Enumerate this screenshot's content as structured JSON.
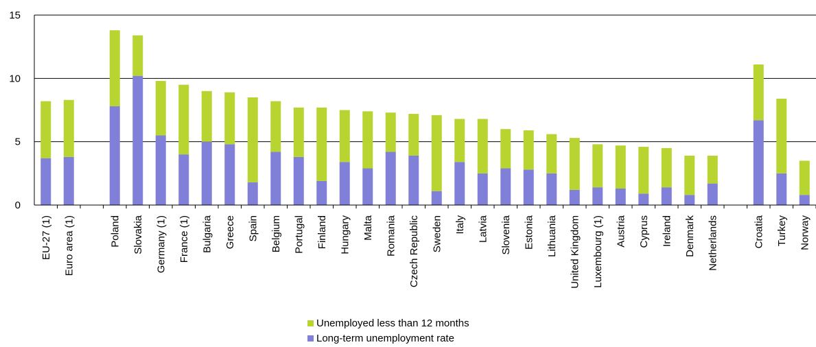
{
  "chart_data": {
    "type": "bar",
    "stacked": true,
    "categories": [
      "EU-27 (1)",
      "Euro area (1)",
      "",
      "Poland",
      "Slovakia",
      "Germany (1)",
      "France (1)",
      "Bulgaria",
      "Greece",
      "Spain",
      "Belgium",
      "Portugal",
      "Finland",
      "Hungary",
      "Malta",
      "Romania",
      "Czech Republic",
      "Sweden",
      "Italy",
      "Latvia",
      "Slovenia",
      "Estonia",
      "Lithuania",
      "United Kingdom",
      "Luxembourg (1)",
      "Austria",
      "Cyprus",
      "Ireland",
      "Denmark",
      "Netherlands",
      "",
      "Croatia",
      "Turkey",
      "Norway"
    ],
    "series": [
      {
        "name": "Long-term unemployment rate",
        "color": "#8080d8",
        "values": [
          3.7,
          3.8,
          null,
          7.8,
          10.2,
          5.5,
          4.0,
          5.0,
          4.8,
          1.8,
          4.2,
          3.8,
          1.9,
          3.4,
          2.9,
          4.2,
          3.9,
          1.1,
          3.4,
          2.5,
          2.9,
          2.8,
          2.5,
          1.2,
          1.4,
          1.3,
          0.9,
          1.4,
          0.8,
          1.7,
          null,
          6.7,
          2.5,
          0.8
        ]
      },
      {
        "name": "Unemployed less than 12 months",
        "color": "#b8d430",
        "values": [
          4.5,
          4.5,
          null,
          6.0,
          3.2,
          4.3,
          5.5,
          4.0,
          4.1,
          6.7,
          4.0,
          3.9,
          5.8,
          4.1,
          4.5,
          3.1,
          3.3,
          6.0,
          3.4,
          4.3,
          3.1,
          3.1,
          3.1,
          4.1,
          3.4,
          3.4,
          3.7,
          3.1,
          3.1,
          2.2,
          null,
          4.4,
          5.9,
          2.7
        ]
      }
    ],
    "ylim": [
      0,
      15
    ],
    "yticks": [
      "0",
      "5",
      "10",
      "15"
    ],
    "grid": true,
    "legend_position": "bottom",
    "legend": [
      "Unemployed less than 12 months",
      "Long-term unemployment rate"
    ]
  }
}
